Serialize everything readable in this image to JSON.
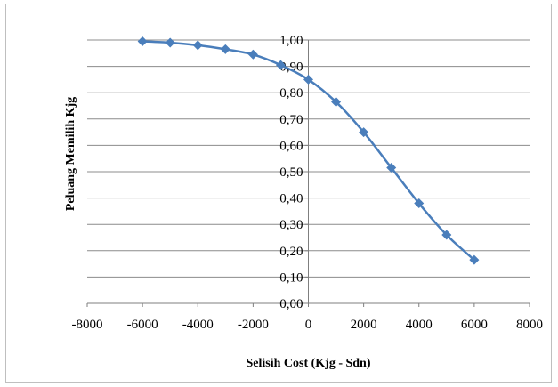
{
  "chart_data": {
    "type": "line",
    "title": "",
    "xlabel": "Selisih Cost (Kjg - Sdn)",
    "ylabel": "Peluang Memilih Kjg",
    "xlim": [
      -8000,
      8000
    ],
    "ylim": [
      0,
      1
    ],
    "x_ticks": [
      "-8000",
      "-6000",
      "-4000",
      "-2000",
      "0",
      "2000",
      "4000",
      "6000",
      "8000"
    ],
    "y_ticks": [
      "0,00",
      "0,10",
      "0,20",
      "0,30",
      "0,40",
      "0,50",
      "0,60",
      "0,70",
      "0,80",
      "0,90",
      "1,00"
    ],
    "grid": true,
    "legend": "none",
    "line_color": "#4a7ebb",
    "marker": "diamond",
    "series": [
      {
        "x": [
          -6000,
          -5000,
          -4000,
          -3000,
          -2000,
          -1000,
          0,
          1000,
          2000,
          3000,
          4000,
          5000,
          6000
        ],
        "values": [
          0.995,
          0.99,
          0.98,
          0.965,
          0.945,
          0.905,
          0.85,
          0.765,
          0.65,
          0.515,
          0.38,
          0.26,
          0.165
        ]
      }
    ]
  }
}
